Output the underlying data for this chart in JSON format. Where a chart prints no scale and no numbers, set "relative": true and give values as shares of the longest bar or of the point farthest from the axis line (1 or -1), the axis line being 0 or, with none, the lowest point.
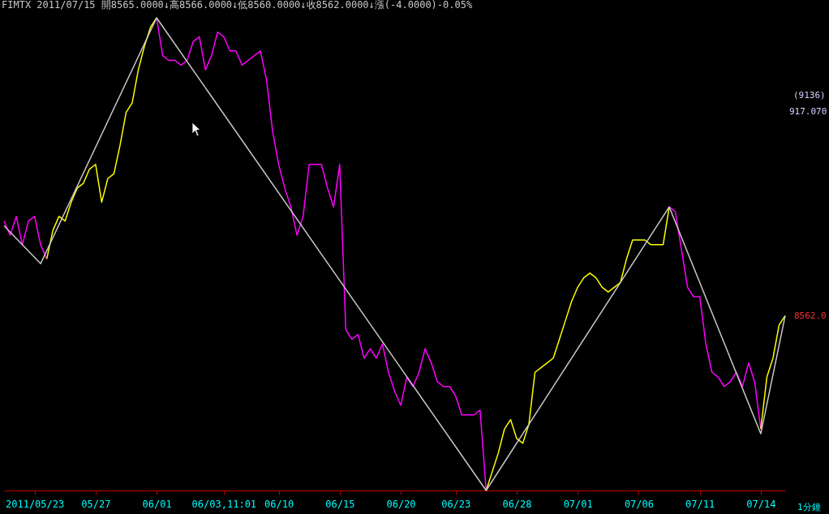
{
  "chart_data": {
    "type": "line",
    "relative": true,
    "legend": false,
    "grid": false,
    "title": "FIMTX 2011/07/15 開8565.0000↓高8566.0000↓低8560.0000↓收8562.0000↓漲(-4.0000)-0.05%",
    "categories": [
      null,
      null,
      null,
      null,
      null,
      "2011/05/23",
      null,
      null,
      null,
      null,
      null,
      null,
      null,
      null,
      null,
      "05/27",
      null,
      null,
      null,
      null,
      null,
      null,
      null,
      null,
      null,
      "06/01",
      null,
      null,
      null,
      null,
      null,
      null,
      null,
      null,
      null,
      null,
      "06/03,11:01",
      null,
      null,
      null,
      null,
      null,
      null,
      null,
      null,
      "06/10",
      null,
      null,
      null,
      null,
      null,
      null,
      null,
      null,
      null,
      "06/15",
      null,
      null,
      null,
      null,
      null,
      null,
      null,
      null,
      null,
      "06/20",
      null,
      null,
      null,
      null,
      null,
      null,
      null,
      null,
      "06/23",
      null,
      null,
      null,
      null,
      null,
      null,
      null,
      null,
      null,
      "06/28",
      null,
      null,
      null,
      null,
      null,
      null,
      null,
      null,
      null,
      "07/01",
      null,
      null,
      null,
      null,
      null,
      null,
      null,
      null,
      null,
      "07/06",
      null,
      null,
      null,
      null,
      null,
      null,
      null,
      null,
      null,
      "07/11",
      null,
      null,
      null,
      null,
      null,
      null,
      null,
      null,
      null,
      "07/14",
      null,
      null,
      null,
      null
    ],
    "series": [
      {
        "color": "#ff00ff",
        "values": [
          0.57,
          0.54,
          0.58,
          0.52,
          0.57,
          0.58,
          0.52,
          0.49,
          null,
          null,
          null,
          null,
          null,
          null,
          null,
          null,
          null,
          null,
          null,
          null,
          null,
          null,
          null,
          null,
          null,
          1,
          0.92,
          0.91,
          0.91,
          0.9,
          0.91,
          0.95,
          0.96,
          0.89,
          0.92,
          0.97,
          0.96,
          0.93,
          0.93,
          0.9,
          0.91,
          0.92,
          0.93,
          0.87,
          0.76,
          0.69,
          0.64,
          0.6,
          0.54,
          0.58,
          0.69,
          0.69,
          0.69,
          0.64,
          0.6,
          0.69,
          0.34,
          0.32,
          0.33,
          0.28,
          0.3,
          0.28,
          0.31,
          0.25,
          0.21,
          0.18,
          0.24,
          0.22,
          0.25,
          0.3,
          0.27,
          0.23,
          0.22,
          0.22,
          0.2,
          0.16,
          0.16,
          0.16,
          0.17,
          0,
          null,
          null,
          null,
          null,
          null,
          null,
          null,
          null,
          null,
          null,
          null,
          null,
          null,
          null,
          null,
          null,
          null,
          null,
          null,
          null,
          null,
          null,
          null,
          null,
          null,
          null,
          null,
          null,
          null,
          0.6,
          0.59,
          0.51,
          0.43,
          0.41,
          0.41,
          0.31,
          0.25,
          0.24,
          0.22,
          0.23,
          0.25,
          0.22,
          0.27,
          0.23,
          0.13,
          null,
          null,
          null,
          null
        ]
      },
      {
        "color": "#ffff00",
        "values": [
          null,
          null,
          null,
          null,
          null,
          null,
          null,
          0.49,
          0.55,
          0.58,
          0.57,
          0.61,
          0.64,
          0.65,
          0.68,
          0.69,
          0.61,
          0.66,
          0.67,
          0.73,
          0.8,
          0.82,
          0.89,
          0.94,
          0.98,
          1,
          null,
          null,
          null,
          null,
          null,
          null,
          null,
          null,
          null,
          null,
          null,
          null,
          null,
          null,
          null,
          null,
          null,
          null,
          null,
          null,
          null,
          null,
          null,
          null,
          null,
          null,
          null,
          null,
          null,
          null,
          null,
          null,
          null,
          null,
          null,
          null,
          null,
          null,
          null,
          null,
          null,
          null,
          null,
          null,
          null,
          null,
          null,
          null,
          null,
          null,
          null,
          null,
          null,
          0,
          0.04,
          0.08,
          0.13,
          0.15,
          0.11,
          0.1,
          0.14,
          0.25,
          0.26,
          0.27,
          0.28,
          0.32,
          0.36,
          0.4,
          0.43,
          0.45,
          0.46,
          0.45,
          0.43,
          0.42,
          0.43,
          0.44,
          0.49,
          0.53,
          0.53,
          0.53,
          0.52,
          0.52,
          0.52,
          0.6,
          null,
          null,
          null,
          null,
          null,
          null,
          null,
          null,
          null,
          null,
          null,
          null,
          null,
          null,
          0.13,
          0.24,
          0.28,
          0.35,
          0.37
        ]
      },
      {
        "color": "#c8c8c8",
        "values": [
          0.56,
          null,
          null,
          null,
          null,
          null,
          0.48,
          null,
          null,
          null,
          null,
          null,
          null,
          null,
          null,
          null,
          null,
          null,
          null,
          null,
          null,
          null,
          null,
          null,
          null,
          1,
          null,
          null,
          null,
          null,
          null,
          null,
          null,
          null,
          null,
          null,
          null,
          null,
          null,
          null,
          null,
          null,
          null,
          null,
          null,
          null,
          null,
          null,
          null,
          null,
          null,
          null,
          null,
          null,
          null,
          null,
          null,
          null,
          null,
          null,
          null,
          null,
          null,
          null,
          null,
          null,
          null,
          null,
          null,
          null,
          null,
          null,
          null,
          null,
          null,
          null,
          null,
          null,
          null,
          0,
          null,
          null,
          null,
          null,
          null,
          null,
          null,
          null,
          null,
          null,
          null,
          null,
          null,
          null,
          null,
          null,
          null,
          null,
          null,
          null,
          null,
          null,
          null,
          null,
          null,
          null,
          null,
          null,
          null,
          0.6,
          null,
          null,
          null,
          null,
          null,
          null,
          null,
          null,
          null,
          null,
          null,
          null,
          null,
          null,
          0.12,
          null,
          null,
          null,
          0.37
        ]
      }
    ],
    "annotations": [
      "(9136)",
      "917.070",
      "8562.0",
      "1分鐘"
    ]
  }
}
